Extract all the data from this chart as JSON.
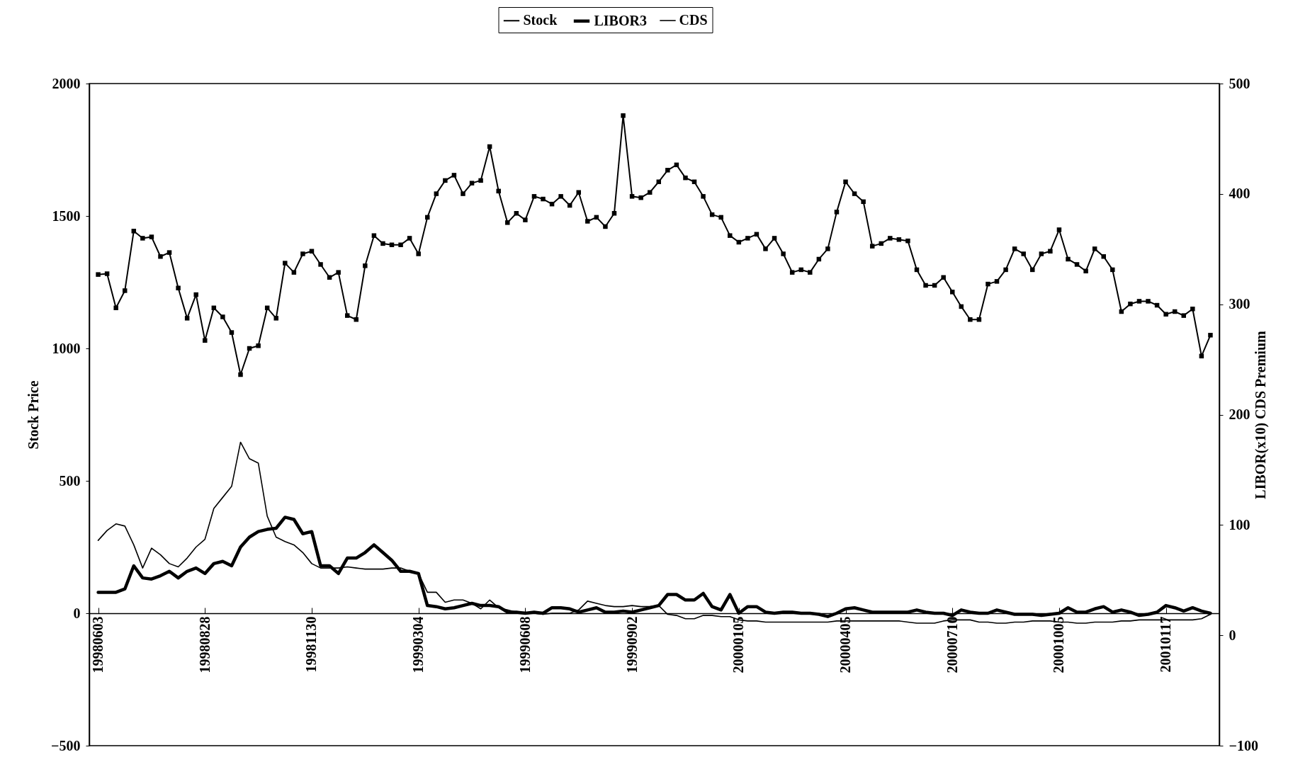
{
  "chart_data": {
    "type": "line",
    "ylabel": "Stock Price",
    "y2label": "LIBOR(x10) CDS Premium",
    "categories": [
      "19980603",
      null,
      null,
      null,
      null,
      null,
      null,
      null,
      null,
      null,
      null,
      null,
      "19980828",
      null,
      null,
      null,
      null,
      null,
      null,
      null,
      null,
      null,
      null,
      null,
      "19981130",
      null,
      null,
      null,
      null,
      null,
      null,
      null,
      null,
      null,
      null,
      null,
      "19990304",
      null,
      null,
      null,
      null,
      null,
      null,
      null,
      null,
      null,
      null,
      null,
      "19990608",
      null,
      null,
      null,
      null,
      null,
      null,
      null,
      null,
      null,
      null,
      null,
      "19990902",
      null,
      null,
      null,
      null,
      null,
      null,
      null,
      null,
      null,
      null,
      null,
      "20000105",
      null,
      null,
      null,
      null,
      null,
      null,
      null,
      null,
      null,
      null,
      null,
      "20000405",
      null,
      null,
      null,
      null,
      null,
      null,
      null,
      null,
      null,
      null,
      null,
      "20000710",
      null,
      null,
      null,
      null,
      null,
      null,
      null,
      null,
      null,
      null,
      null,
      "20001005",
      null,
      null,
      null,
      null,
      null,
      null,
      null,
      null,
      null,
      null,
      null,
      "20010117",
      null,
      null,
      null,
      null,
      null
    ],
    "series": [
      {
        "name": "Stock",
        "color": "#000000",
        "marker": "square",
        "values": [
          1279,
          1282,
          1153,
          1218,
          1443,
          1416,
          1421,
          1347,
          1362,
          1228,
          1114,
          1203,
          1030,
          1153,
          1119,
          1060,
          901,
          1000,
          1010,
          1153,
          1114,
          1322,
          1287,
          1357,
          1367,
          1317,
          1268,
          1287,
          1124,
          1109,
          1312,
          1426,
          1396,
          1391,
          1391,
          1416,
          1357,
          1495,
          1584,
          1634,
          1654,
          1584,
          1624,
          1634,
          1762,
          1594,
          1475,
          1510,
          1485,
          1574,
          1564,
          1545,
          1574,
          1540,
          1589,
          1480,
          1495,
          1460,
          1510,
          1879,
          1574,
          1569,
          1589,
          1629,
          1673,
          1693,
          1644,
          1629,
          1574,
          1505,
          1495,
          1426,
          1401,
          1416,
          1431,
          1376,
          1416,
          1357,
          1287,
          1297,
          1287,
          1337,
          1376,
          1515,
          1629,
          1584,
          1554,
          1386,
          1396,
          1416,
          1411,
          1406,
          1297,
          1238,
          1238,
          1268,
          1213,
          1158,
          1109,
          1109,
          1243,
          1253,
          1297,
          1376,
          1357,
          1297,
          1357,
          1367,
          1448,
          1337,
          1317,
          1292,
          1376,
          1347,
          1297,
          1139,
          1168,
          1178,
          1178,
          1163,
          1129,
          1139,
          1124,
          1149,
          971,
          1050
        ]
      },
      {
        "name": "LIBOR3",
        "color": "#000000",
        "axis": "y2",
        "values": [
          39,
          39,
          39,
          42,
          63,
          52,
          51,
          54,
          58,
          52,
          58,
          61,
          56,
          65,
          67,
          63,
          80,
          89,
          94,
          96,
          97,
          107,
          105,
          92,
          94,
          63,
          63,
          56,
          70,
          70,
          75,
          82,
          75,
          68,
          58,
          58,
          56,
          27,
          26,
          24,
          25,
          27,
          29,
          27,
          27,
          26,
          21,
          21,
          20,
          21,
          20,
          25,
          25,
          24,
          21,
          23,
          25,
          21,
          21,
          22,
          21,
          23,
          25,
          27,
          37,
          37,
          32,
          32,
          38,
          26,
          23,
          37,
          20,
          26,
          26,
          21,
          20,
          21,
          21,
          20,
          20,
          19,
          17,
          20,
          24,
          25,
          23,
          21,
          21,
          21,
          21,
          21,
          23,
          21,
          20,
          20,
          18,
          23,
          21,
          20,
          20,
          23,
          21,
          19,
          19,
          19,
          18,
          19,
          20,
          25,
          21,
          21,
          24,
          26,
          21,
          23,
          21,
          18,
          19,
          21,
          27,
          25,
          22,
          25,
          22,
          20
        ]
      },
      {
        "name": "CDS",
        "color": "#000000",
        "axis": "y2",
        "values": [
          86,
          95,
          101,
          99,
          82,
          61,
          79,
          73,
          65,
          62,
          70,
          80,
          87,
          115,
          125,
          135,
          175,
          160,
          156,
          108,
          89,
          85,
          82,
          75,
          65,
          61,
          61,
          61,
          62,
          61,
          60,
          60,
          60,
          61,
          61,
          58,
          56,
          39,
          39,
          30,
          32,
          32,
          29,
          24,
          32,
          25,
          23,
          21,
          21,
          20,
          19,
          20,
          20,
          20,
          23,
          31,
          29,
          27,
          26,
          26,
          27,
          26,
          26,
          27,
          19,
          18,
          15,
          15,
          18,
          18,
          17,
          17,
          14,
          13,
          13,
          12,
          12,
          12,
          12,
          12,
          12,
          12,
          12,
          13,
          13,
          13,
          13,
          13,
          13,
          13,
          13,
          12,
          11,
          11,
          11,
          13,
          14,
          14,
          14,
          12,
          12,
          11,
          11,
          12,
          12,
          13,
          13,
          13,
          12,
          12,
          11,
          11,
          12,
          12,
          12,
          13,
          13,
          14,
          14,
          14,
          14,
          14,
          14,
          14,
          15,
          19
        ]
      }
    ],
    "ylim": [
      -500,
      2000
    ],
    "yticks": [
      -500,
      0,
      500,
      1000,
      1500,
      2000
    ],
    "y2lim": [
      -100,
      500
    ],
    "y2ticks": [
      -100,
      0,
      100,
      200,
      300,
      400,
      500
    ],
    "legend": "top"
  }
}
